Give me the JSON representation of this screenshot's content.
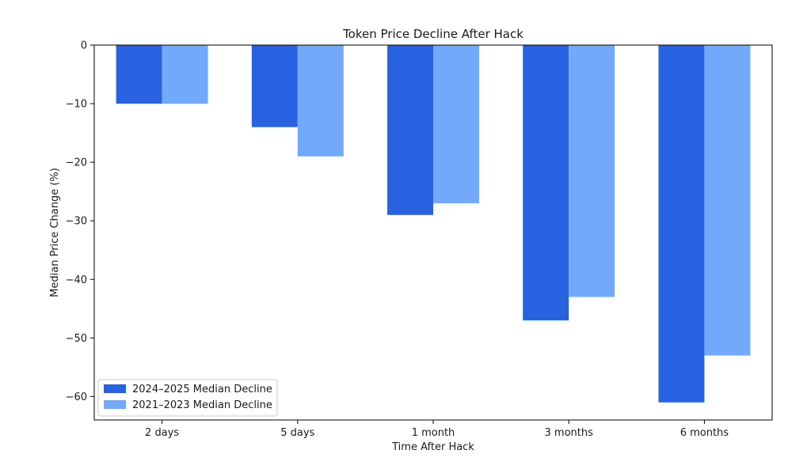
{
  "chart_data": {
    "type": "bar",
    "title": "Token Price Decline After Hack",
    "xlabel": "Time After Hack",
    "ylabel": "Median Price Change (%)",
    "categories": [
      "2 days",
      "5 days",
      "1 month",
      "3 months",
      "6 months"
    ],
    "series": [
      {
        "name": "2024–2025 Median Decline",
        "color": "#2962e0",
        "values": [
          -10,
          -14,
          -29,
          -47,
          -61
        ]
      },
      {
        "name": "2021–2023 Median Decline",
        "color": "#73a9fb",
        "values": [
          -10,
          -19,
          -27,
          -43,
          -53
        ]
      }
    ],
    "ylim": [
      -64,
      0
    ],
    "yticks": [
      0,
      -10,
      -20,
      -30,
      -40,
      -50,
      -60
    ],
    "ytick_labels": [
      "0",
      "−10",
      "−20",
      "−30",
      "−40",
      "−50",
      "−60"
    ],
    "grid": false,
    "legend_position": "lower-left"
  }
}
